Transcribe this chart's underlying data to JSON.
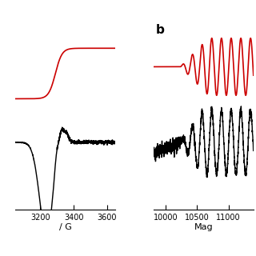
{
  "panel_a": {
    "x_ticks": [
      3200,
      3400,
      3600
    ],
    "xlabel": "/ G"
  },
  "panel_b": {
    "x_ticks": [
      10000,
      10500,
      11000
    ],
    "xlabel": "Mag",
    "label": "b"
  },
  "background_color": "#ffffff",
  "red_color": "#cc0000",
  "black_color": "#000000",
  "linewidth": 1.2
}
